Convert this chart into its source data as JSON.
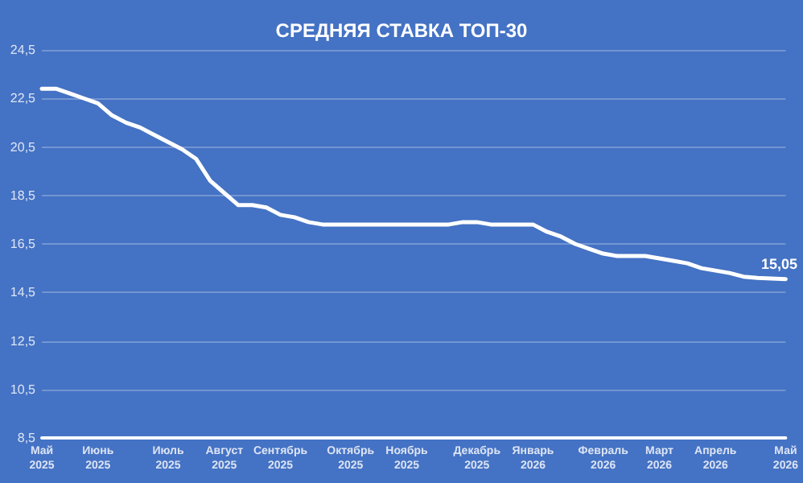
{
  "chart_data": {
    "type": "line",
    "title": "СРЕДНЯЯ СТАВКА ТОП-30",
    "categories": [
      "Май 2025",
      null,
      null,
      null,
      "Июнь 2025",
      null,
      null,
      null,
      null,
      "Июль 2025",
      null,
      null,
      null,
      "Август 2025",
      null,
      null,
      null,
      "Сентябрь 2025",
      null,
      null,
      null,
      null,
      "Октябрь 2025",
      null,
      null,
      null,
      "Ноябрь 2025",
      null,
      null,
      null,
      null,
      "Декабрь 2025",
      null,
      null,
      null,
      "Январь 2026",
      null,
      null,
      null,
      null,
      "Февраль 2026",
      null,
      null,
      null,
      "Март 2026",
      null,
      null,
      null,
      "Апрель 2026",
      null,
      null,
      null,
      null,
      "Май 2026"
    ],
    "series": [
      {
        "color": "#ffffff",
        "values": [
          22.9,
          22.9,
          22.7,
          22.5,
          22.3,
          21.8,
          21.5,
          21.3,
          21.0,
          20.7,
          20.4,
          20.0,
          19.1,
          18.6,
          18.1,
          18.1,
          18.0,
          17.7,
          17.6,
          17.4,
          17.3,
          17.3,
          17.3,
          17.3,
          17.3,
          17.3,
          17.3,
          17.3,
          17.3,
          17.3,
          17.4,
          17.4,
          17.3,
          17.3,
          17.3,
          17.3,
          17.0,
          16.8,
          16.5,
          16.3,
          16.1,
          16.0,
          16.0,
          16.0,
          15.9,
          15.8,
          15.7,
          15.5,
          15.4,
          15.3,
          15.15,
          15.1,
          15.07,
          15.05
        ],
        "value_labels": [
          null,
          null,
          null,
          null,
          null,
          null,
          null,
          null,
          null,
          null,
          null,
          null,
          null,
          null,
          null,
          null,
          null,
          null,
          null,
          null,
          null,
          null,
          null,
          null,
          null,
          null,
          null,
          null,
          null,
          null,
          null,
          null,
          null,
          null,
          null,
          null,
          null,
          null,
          null,
          null,
          null,
          null,
          null,
          null,
          null,
          null,
          null,
          null,
          null,
          null,
          null,
          null,
          null,
          "15,05"
        ]
      }
    ],
    "ylim": [
      8.5,
      24.5
    ],
    "yticks": [
      {
        "value": 8.5,
        "label": "8,5"
      },
      {
        "value": 10.5,
        "label": "10,5"
      },
      {
        "value": 12.5,
        "label": "12,5"
      },
      {
        "value": 14.5,
        "label": "14,5"
      },
      {
        "value": 16.5,
        "label": "16,5"
      },
      {
        "value": 18.5,
        "label": "18,5"
      },
      {
        "value": 20.5,
        "label": "20,5"
      },
      {
        "value": 22.5,
        "label": "22,5"
      },
      {
        "value": 24.5,
        "label": "24,5"
      }
    ],
    "grid": "y",
    "marker": "none",
    "line_style": "solid"
  }
}
